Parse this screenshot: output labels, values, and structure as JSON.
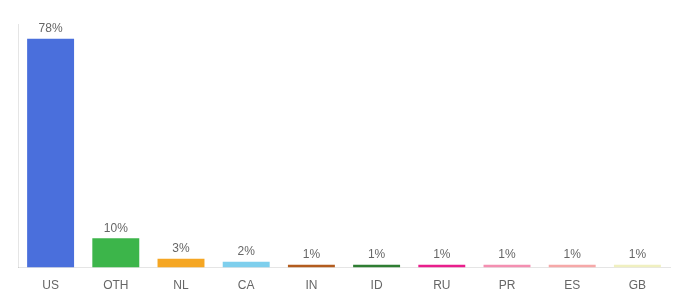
{
  "chart_data": {
    "type": "bar",
    "categories": [
      "US",
      "OTH",
      "NL",
      "CA",
      "IN",
      "ID",
      "RU",
      "PR",
      "ES",
      "GB"
    ],
    "values": [
      78,
      10,
      3,
      2,
      1,
      1,
      1,
      1,
      1,
      1
    ],
    "value_labels": [
      "78%",
      "10%",
      "3%",
      "2%",
      "1%",
      "1%",
      "1%",
      "1%",
      "1%",
      "1%"
    ],
    "colors": [
      "#4a6fdc",
      "#3cb54a",
      "#f5a623",
      "#7ecfed",
      "#b35c1e",
      "#2e7d32",
      "#e91e8c",
      "#f48fb1",
      "#f6a8a8",
      "#f0f0c0"
    ],
    "ylim": [
      0,
      83
    ],
    "grid": false,
    "data_labels": true,
    "tick_labels": "x"
  }
}
